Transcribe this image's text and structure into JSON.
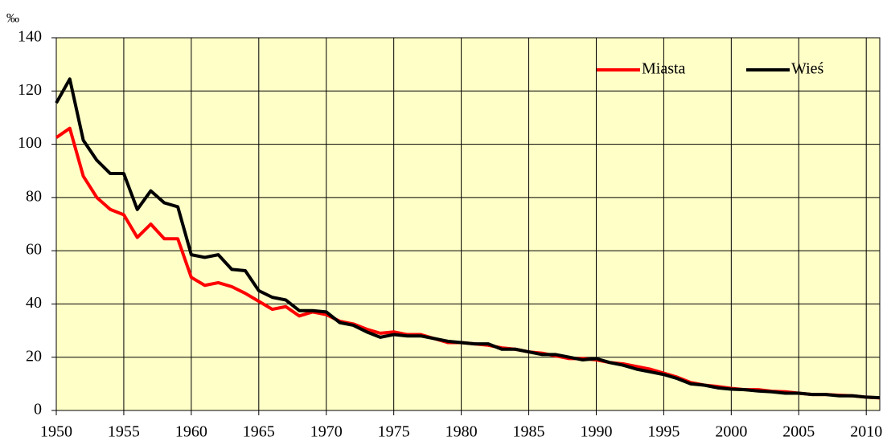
{
  "chart_data": {
    "type": "line",
    "y_label": "‰",
    "x": [
      1950,
      1951,
      1952,
      1953,
      1954,
      1955,
      1956,
      1957,
      1958,
      1959,
      1960,
      1961,
      1962,
      1963,
      1964,
      1965,
      1966,
      1967,
      1968,
      1969,
      1970,
      1971,
      1972,
      1973,
      1974,
      1975,
      1976,
      1977,
      1978,
      1979,
      1980,
      1981,
      1982,
      1983,
      1984,
      1985,
      1986,
      1987,
      1988,
      1989,
      1990,
      1991,
      1992,
      1993,
      1994,
      1995,
      1996,
      1997,
      1998,
      1999,
      2000,
      2001,
      2002,
      2003,
      2004,
      2005,
      2006,
      2007,
      2008,
      2009,
      2010,
      2011
    ],
    "series": [
      {
        "name": "Miasta",
        "color": "#ff0000",
        "values": [
          102.5,
          106,
          88,
          80,
          75.5,
          73.5,
          65,
          70,
          64.5,
          64.5,
          50,
          47,
          48,
          46.5,
          44,
          41,
          38,
          39,
          35.5,
          37,
          36,
          33.5,
          32.5,
          30.5,
          29,
          29.5,
          28.5,
          28.5,
          27,
          25.5,
          25.5,
          25,
          24.5,
          23.5,
          23,
          22,
          21.5,
          20.5,
          19.5,
          19.5,
          19,
          18,
          17.5,
          16.5,
          15.5,
          14,
          12.5,
          10.5,
          9.5,
          9,
          8.3,
          7.8,
          7.8,
          7.2,
          7,
          6.5,
          6,
          6,
          5.7,
          5.5,
          5,
          4.7
        ]
      },
      {
        "name": "Wieś",
        "color": "#000000",
        "values": [
          115.5,
          124.5,
          101.5,
          94,
          89,
          89,
          75.5,
          82.5,
          78,
          76.5,
          58.5,
          57.5,
          58.5,
          53,
          52.5,
          45,
          42.5,
          41.5,
          37.5,
          37.5,
          37,
          33,
          32,
          29.5,
          27.5,
          28.5,
          28,
          28,
          27,
          26,
          25.5,
          25,
          25,
          23,
          23,
          22,
          21,
          21,
          20,
          19,
          19.5,
          18,
          17,
          15.5,
          14.5,
          13.5,
          12,
          10,
          9.5,
          8.5,
          8,
          7.8,
          7.3,
          7,
          6.5,
          6.5,
          6,
          6,
          5.5,
          5.5,
          5,
          4.8
        ]
      }
    ],
    "xlim": [
      1950,
      2011
    ],
    "xticks": [
      1950,
      1955,
      1960,
      1965,
      1970,
      1975,
      1980,
      1985,
      1990,
      1995,
      2000,
      2005,
      2010
    ],
    "ylim": [
      0,
      140
    ],
    "yticks": [
      0,
      20,
      40,
      60,
      80,
      100,
      120,
      140
    ],
    "grid": true,
    "legend": "upper right",
    "background": "#ffffc8"
  }
}
